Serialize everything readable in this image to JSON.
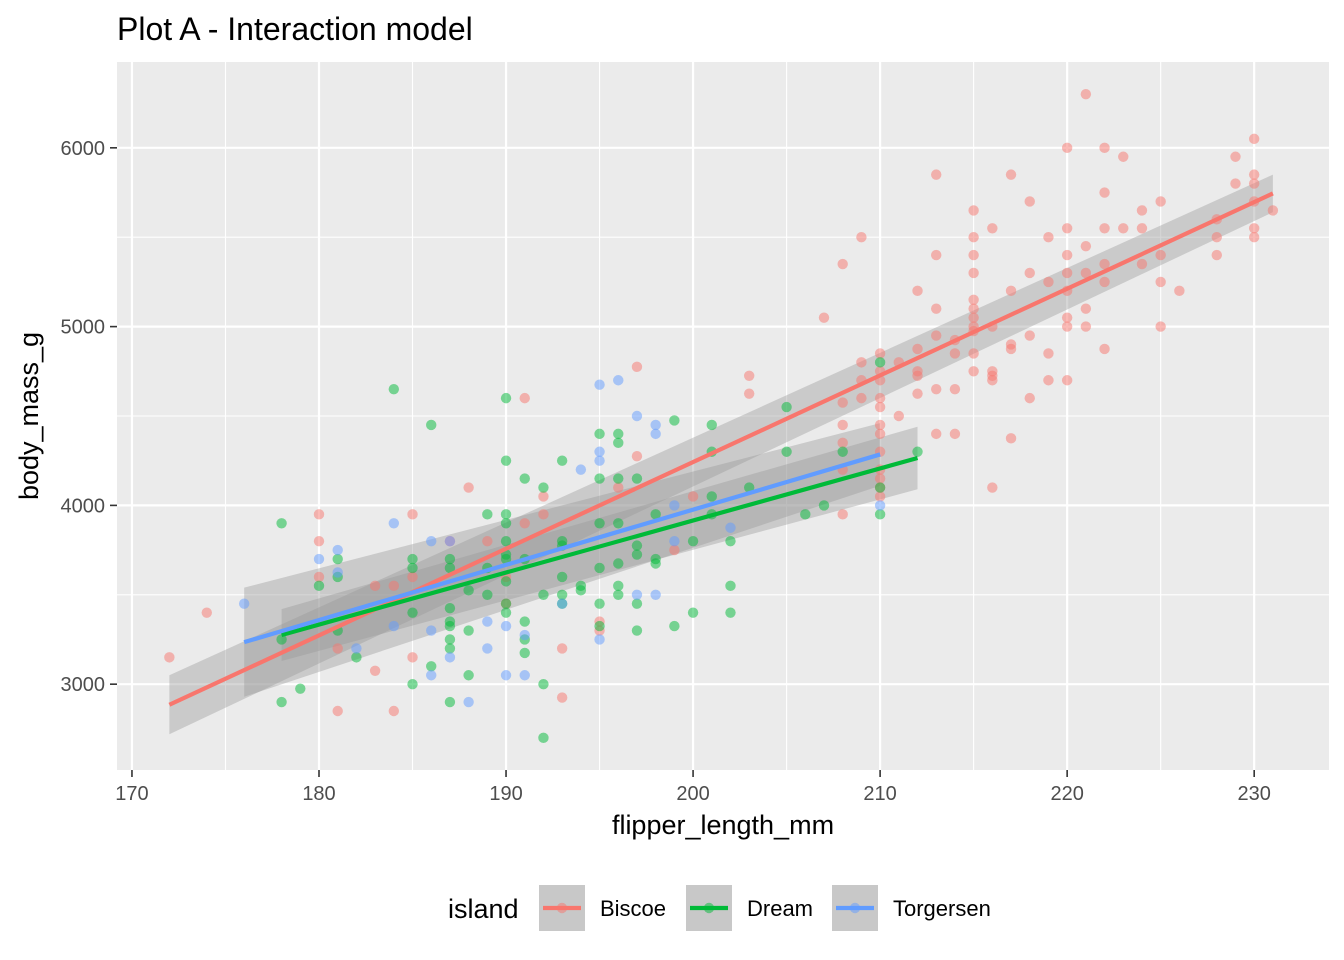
{
  "chart_data": {
    "type": "scatter",
    "title": "Plot A - Interaction model",
    "xlabel": "flipper_length_mm",
    "ylabel": "body_mass_g",
    "xlim": [
      169.2,
      234.0
    ],
    "ylim": [
      2520,
      6480
    ],
    "x_ticks": [
      170,
      180,
      190,
      200,
      210,
      220,
      230
    ],
    "y_ticks": [
      3000,
      4000,
      5000,
      6000
    ],
    "grid": true,
    "legend_position": "bottom",
    "legend_title": "island",
    "colors": {
      "panel": "#ebebeb",
      "grid": "#ffffff",
      "band": "#999999"
    },
    "series": [
      {
        "name": "Biscoe",
        "color": "#F8766D",
        "fit_x": [
          172,
          231
        ],
        "fit_y": [
          2885,
          5745
        ],
        "band_lower": [
          2720,
          5640
        ],
        "band_upper": [
          3050,
          5850
        ],
        "points": [
          [
            172,
            3150
          ],
          [
            174,
            3400
          ],
          [
            180,
            3950
          ],
          [
            180,
            3800
          ],
          [
            180,
            3600
          ],
          [
            181,
            2850
          ],
          [
            181,
            3200
          ],
          [
            183,
            3550
          ],
          [
            183,
            3075
          ],
          [
            184,
            2850
          ],
          [
            184,
            3550
          ],
          [
            185,
            3950
          ],
          [
            185,
            3150
          ],
          [
            185,
            3600
          ],
          [
            187,
            3800
          ],
          [
            188,
            4100
          ],
          [
            189,
            3800
          ],
          [
            190,
            3600
          ],
          [
            190,
            3450
          ],
          [
            191,
            4600
          ],
          [
            191,
            3900
          ],
          [
            192,
            4050
          ],
          [
            192,
            3950
          ],
          [
            193,
            3200
          ],
          [
            193,
            2925
          ],
          [
            195,
            3350
          ],
          [
            195,
            3300
          ],
          [
            196,
            4100
          ],
          [
            197,
            4775
          ],
          [
            197,
            4275
          ],
          [
            199,
            3750
          ],
          [
            200,
            4050
          ],
          [
            203,
            4725
          ],
          [
            203,
            4625
          ],
          [
            207,
            5050
          ],
          [
            208,
            5350
          ],
          [
            208,
            4575
          ],
          [
            208,
            4450
          ],
          [
            208,
            4350
          ],
          [
            208,
            4200
          ],
          [
            208,
            3950
          ],
          [
            209,
            5500
          ],
          [
            209,
            4800
          ],
          [
            209,
            4700
          ],
          [
            209,
            4600
          ],
          [
            210,
            4850
          ],
          [
            210,
            4750
          ],
          [
            210,
            4700
          ],
          [
            210,
            4600
          ],
          [
            210,
            4550
          ],
          [
            210,
            4450
          ],
          [
            210,
            4400
          ],
          [
            210,
            4300
          ],
          [
            210,
            4200
          ],
          [
            210,
            4150
          ],
          [
            210,
            4100
          ],
          [
            210,
            4050
          ],
          [
            211,
            4500
          ],
          [
            211,
            4800
          ],
          [
            212,
            5200
          ],
          [
            212,
            4875
          ],
          [
            212,
            4750
          ],
          [
            212,
            4725
          ],
          [
            212,
            4625
          ],
          [
            213,
            5850
          ],
          [
            213,
            5400
          ],
          [
            213,
            5100
          ],
          [
            213,
            4950
          ],
          [
            213,
            4650
          ],
          [
            213,
            4400
          ],
          [
            214,
            4925
          ],
          [
            214,
            4850
          ],
          [
            214,
            4650
          ],
          [
            214,
            4400
          ],
          [
            215,
            5650
          ],
          [
            215,
            5500
          ],
          [
            215,
            5400
          ],
          [
            215,
            5300
          ],
          [
            215,
            5150
          ],
          [
            215,
            5100
          ],
          [
            215,
            5050
          ],
          [
            215,
            5000
          ],
          [
            215,
            4975
          ],
          [
            215,
            4850
          ],
          [
            215,
            4750
          ],
          [
            216,
            5550
          ],
          [
            216,
            5000
          ],
          [
            216,
            4750
          ],
          [
            216,
            4725
          ],
          [
            216,
            4700
          ],
          [
            216,
            4100
          ],
          [
            217,
            5850
          ],
          [
            217,
            5200
          ],
          [
            217,
            4900
          ],
          [
            217,
            4875
          ],
          [
            217,
            4375
          ],
          [
            218,
            5700
          ],
          [
            218,
            5300
          ],
          [
            218,
            4950
          ],
          [
            218,
            4600
          ],
          [
            219,
            5500
          ],
          [
            219,
            5250
          ],
          [
            219,
            4850
          ],
          [
            219,
            4700
          ],
          [
            220,
            6000
          ],
          [
            220,
            5550
          ],
          [
            220,
            5400
          ],
          [
            220,
            5300
          ],
          [
            220,
            5200
          ],
          [
            220,
            5050
          ],
          [
            220,
            5000
          ],
          [
            220,
            4700
          ],
          [
            221,
            6300
          ],
          [
            221,
            5450
          ],
          [
            221,
            5300
          ],
          [
            221,
            5100
          ],
          [
            221,
            5000
          ],
          [
            222,
            6000
          ],
          [
            222,
            5750
          ],
          [
            222,
            5550
          ],
          [
            222,
            5350
          ],
          [
            222,
            5250
          ],
          [
            222,
            4875
          ],
          [
            223,
            5950
          ],
          [
            223,
            5550
          ],
          [
            224,
            5650
          ],
          [
            224,
            5550
          ],
          [
            224,
            5350
          ],
          [
            225,
            5700
          ],
          [
            225,
            5400
          ],
          [
            225,
            5250
          ],
          [
            225,
            5000
          ],
          [
            226,
            5200
          ],
          [
            228,
            5600
          ],
          [
            228,
            5500
          ],
          [
            228,
            5400
          ],
          [
            229,
            5950
          ],
          [
            229,
            5800
          ],
          [
            230,
            6050
          ],
          [
            230,
            5850
          ],
          [
            230,
            5800
          ],
          [
            230,
            5700
          ],
          [
            230,
            5550
          ],
          [
            230,
            5500
          ],
          [
            231,
            5650
          ]
        ]
      },
      {
        "name": "Dream",
        "color": "#00BA38",
        "fit_x": [
          178,
          212
        ],
        "fit_y": [
          3275,
          4265
        ],
        "band_lower": [
          3130,
          4090
        ],
        "band_upper": [
          3420,
          4440
        ],
        "points": [
          [
            178,
            3900
          ],
          [
            178,
            3250
          ],
          [
            178,
            2900
          ],
          [
            179,
            2975
          ],
          [
            180,
            3550
          ],
          [
            181,
            3700
          ],
          [
            181,
            3600
          ],
          [
            181,
            3300
          ],
          [
            182,
            3150
          ],
          [
            184,
            4650
          ],
          [
            185,
            3700
          ],
          [
            185,
            3650
          ],
          [
            185,
            3400
          ],
          [
            185,
            3000
          ],
          [
            186,
            4450
          ],
          [
            186,
            3100
          ],
          [
            187,
            3700
          ],
          [
            187,
            3650
          ],
          [
            187,
            3425
          ],
          [
            187,
            3350
          ],
          [
            187,
            3325
          ],
          [
            187,
            3250
          ],
          [
            187,
            3200
          ],
          [
            187,
            2900
          ],
          [
            188,
            3525
          ],
          [
            188,
            3300
          ],
          [
            188,
            3050
          ],
          [
            189,
            3950
          ],
          [
            189,
            3650
          ],
          [
            189,
            3500
          ],
          [
            190,
            4600
          ],
          [
            190,
            4250
          ],
          [
            190,
            3950
          ],
          [
            190,
            3900
          ],
          [
            190,
            3800
          ],
          [
            190,
            3725
          ],
          [
            190,
            3700
          ],
          [
            190,
            3575
          ],
          [
            190,
            3450
          ],
          [
            190,
            3400
          ],
          [
            191,
            4150
          ],
          [
            191,
            3700
          ],
          [
            191,
            3350
          ],
          [
            191,
            3250
          ],
          [
            191,
            3175
          ],
          [
            192,
            4100
          ],
          [
            192,
            3500
          ],
          [
            192,
            3000
          ],
          [
            192,
            2700
          ],
          [
            193,
            4250
          ],
          [
            193,
            3800
          ],
          [
            193,
            3775
          ],
          [
            193,
            3600
          ],
          [
            193,
            3500
          ],
          [
            193,
            3450
          ],
          [
            194,
            3550
          ],
          [
            194,
            3525
          ],
          [
            195,
            4400
          ],
          [
            195,
            4150
          ],
          [
            195,
            3900
          ],
          [
            195,
            3650
          ],
          [
            195,
            3450
          ],
          [
            195,
            3325
          ],
          [
            196,
            4400
          ],
          [
            196,
            4350
          ],
          [
            196,
            4150
          ],
          [
            196,
            3900
          ],
          [
            196,
            3675
          ],
          [
            196,
            3550
          ],
          [
            196,
            3500
          ],
          [
            197,
            4150
          ],
          [
            197,
            3775
          ],
          [
            197,
            3725
          ],
          [
            197,
            3450
          ],
          [
            197,
            3300
          ],
          [
            198,
            3950
          ],
          [
            198,
            3700
          ],
          [
            198,
            3675
          ],
          [
            199,
            4475
          ],
          [
            199,
            3325
          ],
          [
            200,
            3800
          ],
          [
            200,
            3400
          ],
          [
            201,
            4450
          ],
          [
            201,
            4300
          ],
          [
            201,
            4050
          ],
          [
            201,
            3950
          ],
          [
            202,
            3800
          ],
          [
            202,
            3550
          ],
          [
            202,
            3400
          ],
          [
            203,
            4100
          ],
          [
            205,
            4550
          ],
          [
            205,
            4300
          ],
          [
            206,
            3950
          ],
          [
            207,
            4000
          ],
          [
            208,
            4300
          ],
          [
            210,
            4800
          ],
          [
            210,
            4100
          ],
          [
            210,
            3950
          ],
          [
            212,
            4300
          ]
        ]
      },
      {
        "name": "Torgersen",
        "color": "#619CFF",
        "fit_x": [
          176,
          210
        ],
        "fit_y": [
          3235,
          4285
        ],
        "band_lower": [
          2930,
          4110
        ],
        "band_upper": [
          3540,
          4460
        ],
        "points": [
          [
            176,
            3450
          ],
          [
            180,
            3700
          ],
          [
            181,
            3750
          ],
          [
            181,
            3625
          ],
          [
            182,
            3200
          ],
          [
            184,
            3900
          ],
          [
            184,
            3325
          ],
          [
            186,
            3800
          ],
          [
            186,
            3300
          ],
          [
            186,
            3050
          ],
          [
            187,
            3800
          ],
          [
            187,
            3150
          ],
          [
            188,
            2900
          ],
          [
            189,
            3350
          ],
          [
            189,
            3200
          ],
          [
            190,
            3325
          ],
          [
            190,
            3050
          ],
          [
            191,
            3275
          ],
          [
            191,
            3050
          ],
          [
            193,
            3450
          ],
          [
            194,
            4200
          ],
          [
            195,
            4675
          ],
          [
            195,
            4300
          ],
          [
            195,
            4250
          ],
          [
            195,
            3250
          ],
          [
            196,
            4700
          ],
          [
            197,
            4500
          ],
          [
            197,
            3500
          ],
          [
            198,
            4450
          ],
          [
            198,
            4400
          ],
          [
            198,
            3500
          ],
          [
            199,
            4000
          ],
          [
            199,
            3800
          ],
          [
            202,
            3875
          ],
          [
            210,
            4000
          ]
        ]
      }
    ]
  }
}
